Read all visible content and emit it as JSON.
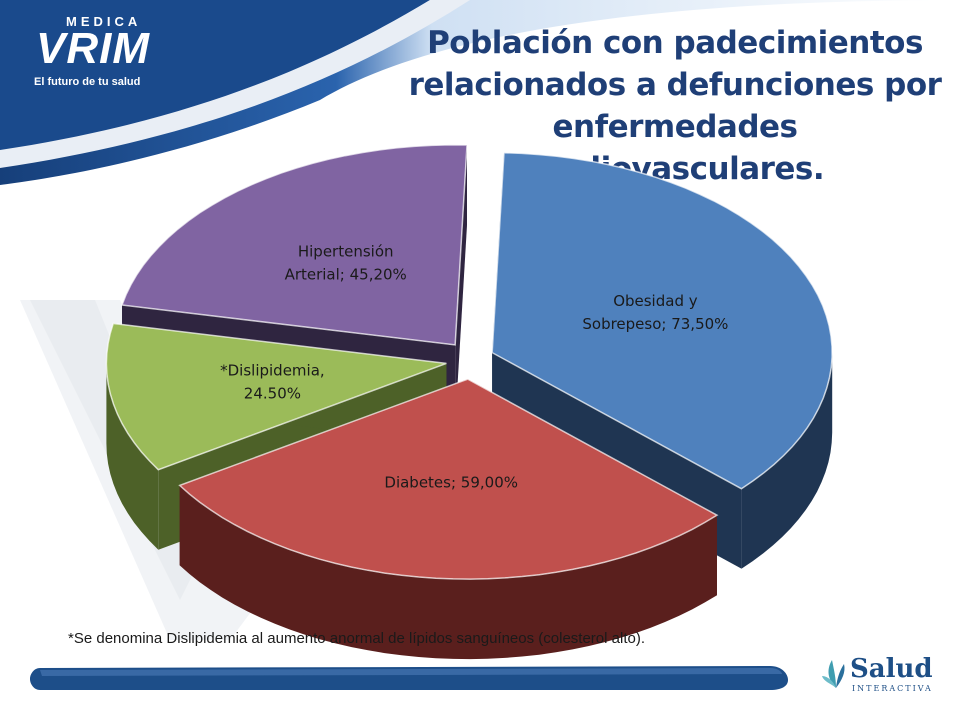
{
  "header": {
    "logo_top": "MEDICA",
    "logo_main": "VRIM",
    "logo_tagline": "El futuro de tu salud",
    "title_lines": [
      "Población con padecimientos",
      "relacionados a defunciones por",
      "enfermedades cardiovasculares."
    ]
  },
  "chart_data": {
    "type": "pie",
    "style": "3d-exploded",
    "title": "Población con padecimientos relacionados a defunciones por enfermedades cardiovasculares.",
    "slices": [
      {
        "name": "Obesidad y Sobrepeso",
        "value": 73.5,
        "label_lines": [
          "Obesidad y",
          "Sobrepeso; 73,50%"
        ],
        "color": "#4f81bd",
        "side_color": "#1f3552"
      },
      {
        "name": "Diabetes",
        "value": 59.0,
        "label_lines": [
          "Diabetes; 59,00%"
        ],
        "color": "#c0504d",
        "side_color": "#5a1f1d"
      },
      {
        "name": "*Dislipidemia",
        "value": 24.5,
        "label_lines": [
          "*Dislipidemia,",
          "24.50%"
        ],
        "color": "#9bbb59",
        "side_color": "#4d6128"
      },
      {
        "name": "Hipertensión Arterial",
        "value": 45.2,
        "label_lines": [
          "Hipertensión",
          "Arterial; 45,20%"
        ],
        "color": "#8064a2",
        "side_color": "#2f2540"
      }
    ]
  },
  "footnote": "*Se denomina Dislipidemia al aumento anormal de lípidos sanguíneos (colesterol alto).",
  "footer": {
    "brand": "Salud",
    "brand_sub": "INTERACTIVA",
    "bar_color": "#1d4e89"
  }
}
